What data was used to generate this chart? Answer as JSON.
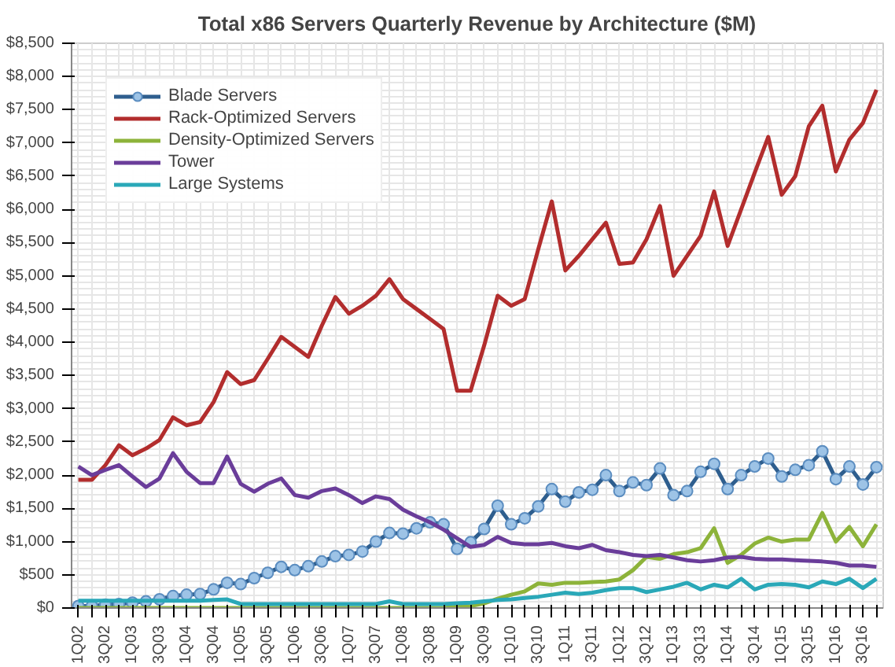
{
  "chart_data": {
    "type": "line",
    "title": "Total x86 Servers Quarterly Revenue by Architecture ($M)",
    "categories": [
      "1Q02",
      null,
      "3Q02",
      null,
      "1Q03",
      null,
      "3Q03",
      null,
      "1Q04",
      null,
      "3Q04",
      null,
      "1Q05",
      null,
      "3Q05",
      null,
      "1Q06",
      null,
      "3Q06",
      null,
      "1Q07",
      null,
      "3Q07",
      null,
      "1Q08",
      null,
      "3Q08",
      null,
      "1Q09",
      null,
      "3Q09",
      null,
      "1Q10",
      null,
      "3Q10",
      null,
      "1Q11",
      null,
      "3Q11",
      null,
      "1Q12",
      null,
      "3Q12",
      null,
      "1Q13",
      null,
      "3Q13",
      null,
      "1Q14",
      null,
      "3Q14",
      null,
      "1Q15",
      null,
      "3Q15",
      null,
      "1Q16",
      null,
      "3Q16",
      null
    ],
    "series": [
      {
        "name": "Blade Servers",
        "color": "#2e5e8e",
        "marker": "circle",
        "values": [
          30,
          30,
          50,
          60,
          80,
          100,
          130,
          180,
          200,
          210,
          280,
          380,
          360,
          450,
          530,
          620,
          570,
          630,
          700,
          780,
          800,
          850,
          1000,
          1130,
          1120,
          1200,
          1290,
          1260,
          890,
          990,
          1190,
          1540,
          1260,
          1350,
          1530,
          1790,
          1600,
          1740,
          1780,
          2000,
          1760,
          1890,
          1850,
          2100,
          1700,
          1760,
          2050,
          2170,
          1790,
          2000,
          2130,
          2250,
          1980,
          2080,
          2150,
          2360,
          1940,
          2130,
          1860,
          2120
        ]
      },
      {
        "name": "Rack-Optimized Servers",
        "color": "#b22d2d",
        "marker": "none",
        "values": [
          1930,
          1930,
          2150,
          2450,
          2300,
          2400,
          2530,
          2870,
          2750,
          2800,
          3100,
          3550,
          3370,
          3430,
          3750,
          4080,
          3930,
          3780,
          4250,
          4680,
          4430,
          4550,
          4700,
          4950,
          4650,
          4500,
          4350,
          4200,
          3270,
          3270,
          3950,
          4700,
          4550,
          4650,
          5400,
          6120,
          5080,
          5300,
          5550,
          5800,
          5180,
          5200,
          5550,
          6050,
          5000,
          5300,
          5600,
          6270,
          5450,
          6000,
          6550,
          7090,
          6220,
          6500,
          7250,
          7560,
          6570,
          7050,
          7300,
          7800
        ]
      },
      {
        "name": "Density-Optimized Servers",
        "color": "#8db33a",
        "marker": "none",
        "values": [
          0,
          0,
          0,
          0,
          0,
          0,
          0,
          0,
          0,
          0,
          0,
          0,
          0,
          0,
          0,
          0,
          0,
          0,
          0,
          0,
          0,
          0,
          0,
          0,
          0,
          0,
          0,
          0,
          20,
          30,
          70,
          140,
          200,
          250,
          370,
          350,
          380,
          380,
          390,
          400,
          430,
          570,
          770,
          740,
          810,
          840,
          900,
          1200,
          680,
          800,
          970,
          1060,
          1000,
          1030,
          1030,
          1430,
          1000,
          1220,
          930,
          1260
        ]
      },
      {
        "name": "Tower",
        "color": "#6a3d9a",
        "marker": "none",
        "values": [
          2130,
          2000,
          2080,
          2150,
          1980,
          1820,
          1950,
          2330,
          2050,
          1880,
          1880,
          2280,
          1870,
          1750,
          1870,
          1950,
          1700,
          1660,
          1760,
          1800,
          1700,
          1580,
          1680,
          1640,
          1480,
          1380,
          1290,
          1180,
          1050,
          920,
          950,
          1070,
          980,
          960,
          960,
          980,
          930,
          900,
          950,
          870,
          840,
          800,
          780,
          800,
          760,
          720,
          700,
          720,
          760,
          770,
          740,
          730,
          730,
          720,
          710,
          700,
          680,
          640,
          640,
          620
        ]
      },
      {
        "name": "Large Systems",
        "color": "#2aa8b8",
        "marker": "none",
        "values": [
          110,
          110,
          110,
          110,
          110,
          110,
          110,
          110,
          110,
          110,
          120,
          130,
          60,
          60,
          60,
          60,
          60,
          60,
          60,
          60,
          60,
          60,
          60,
          100,
          60,
          60,
          60,
          60,
          70,
          80,
          100,
          120,
          130,
          150,
          170,
          200,
          230,
          210,
          230,
          270,
          300,
          300,
          240,
          280,
          320,
          380,
          280,
          350,
          310,
          440,
          280,
          350,
          360,
          350,
          310,
          400,
          360,
          440,
          300,
          440
        ]
      }
    ],
    "ylim": [
      0,
      8500
    ],
    "yticks": [
      {
        "value": 0,
        "label": "$0"
      },
      {
        "value": 500,
        "label": "$500"
      },
      {
        "value": 1000,
        "label": "$1,000"
      },
      {
        "value": 1500,
        "label": "$1,500"
      },
      {
        "value": 2000,
        "label": "$2,000"
      },
      {
        "value": 2500,
        "label": "$2,500"
      },
      {
        "value": 3000,
        "label": "$3,000"
      },
      {
        "value": 3500,
        "label": "$3,500"
      },
      {
        "value": 4000,
        "label": "$4,000"
      },
      {
        "value": 4500,
        "label": "$4,500"
      },
      {
        "value": 5000,
        "label": "$5,000"
      },
      {
        "value": 5500,
        "label": "$5,500"
      },
      {
        "value": 6000,
        "label": "$6,000"
      },
      {
        "value": 6500,
        "label": "$6,500"
      },
      {
        "value": 7000,
        "label": "$7,000"
      },
      {
        "value": 7500,
        "label": "$7,500"
      },
      {
        "value": 8000,
        "label": "$8,000"
      },
      {
        "value": 8500,
        "label": "$8,500"
      }
    ],
    "grid": true,
    "legend": "top left",
    "line_style": "solid"
  }
}
